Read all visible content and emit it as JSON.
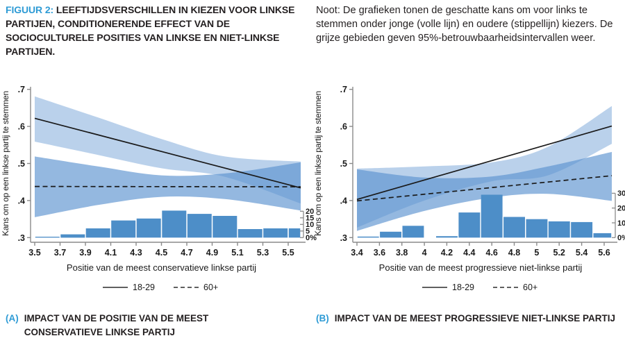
{
  "header": {
    "figure_label": "FIGUUR 2:",
    "title_rest": " LEEFTIJDSVERSCHILLEN IN KIEZEN VOOR LINKSE PARTIJEN, CONDITIONERENDE EFFECT VAN DE SOCIOCULTURELE POSITIES VAN LINKSE EN NIET-LINKSE PARTIJEN.",
    "note": "Noot: De grafieken tonen de geschatte kans om voor links te stemmen onder jonge (volle lijn) en oudere (stippellijn) kiezers. De grijze gebieden geven 95%-betrouwbaarheidsintervallen weer."
  },
  "colors": {
    "accent_blue": "#2E9BD5",
    "bar_blue": "#4D8EC8",
    "band_blue": "#5B92CF",
    "line_black": "#1a1a1a",
    "axis_gray": "#8a8a8a",
    "text_dark": "#231f20",
    "legend_line": "#4a4a4a"
  },
  "captions": [
    {
      "prefix": "(A)",
      "text": "IMPACT VAN DE POSITIE VAN DE MEEST CONSERVATIEVE LINKSE PARTIJ"
    },
    {
      "prefix": "(B)",
      "text": "IMPACT VAN DE MEEST PROGRESSIEVE NIET-LINKSE PARTIJ"
    }
  ],
  "chart_data": [
    {
      "type": "line",
      "panel": "A",
      "ylabel": "Kans om op een linkse partij te stemmen",
      "xlabel": "Positie van de meest conservatieve linkse partij",
      "ylim": [
        0.3,
        0.71
      ],
      "xlim": [
        3.5,
        5.62
      ],
      "grid": false,
      "y_tick_values": [
        0.3,
        0.4,
        0.5,
        0.6,
        0.7
      ],
      "y_tick_labels": [
        ".3",
        ".4",
        ".5",
        ".6",
        ".7"
      ],
      "x_tick_values": [
        3.5,
        3.7,
        3.9,
        4.1,
        4.3,
        4.5,
        4.7,
        4.9,
        5.1,
        5.3,
        5.5
      ],
      "x_tick_labels": [
        "3.5",
        "3.7",
        "3.9",
        "4.1",
        "4.3",
        "4.5",
        "4.7",
        "4.9",
        "5.1",
        "5.3",
        "5.5"
      ],
      "legend": [
        {
          "label": "18-29",
          "style": "solid"
        },
        {
          "label": "60+",
          "style": "dashed"
        }
      ],
      "series": [
        {
          "name": "18-29",
          "style": "solid",
          "points": [
            [
              3.5,
              0.622
            ],
            [
              5.6,
              0.434
            ]
          ]
        },
        {
          "name": "60+",
          "style": "dashed",
          "points": [
            [
              3.5,
              0.438
            ],
            [
              5.6,
              0.437
            ]
          ]
        }
      ],
      "bands": [
        {
          "for": "18-29",
          "level": "95%",
          "x": [
            3.5,
            4.0,
            4.5,
            5.0,
            5.6
          ],
          "upper": [
            0.681,
            0.624,
            0.566,
            0.519,
            0.505
          ],
          "lower": [
            0.559,
            0.523,
            0.487,
            0.464,
            0.392
          ],
          "opacity": 0.42
        },
        {
          "for": "60+",
          "level": "95%",
          "x": [
            3.5,
            4.0,
            4.5,
            5.0,
            5.6
          ],
          "upper": [
            0.519,
            0.492,
            0.468,
            0.473,
            0.503
          ],
          "lower": [
            0.355,
            0.388,
            0.41,
            0.404,
            0.373
          ],
          "opacity": 0.65
        }
      ],
      "histogram": {
        "bin_width": 0.2,
        "bin_starts": [
          3.5,
          3.7,
          3.9,
          4.1,
          4.3,
          4.5,
          4.7,
          4.9,
          5.1,
          5.3,
          5.5
        ],
        "percents": [
          0.7,
          2.5,
          7,
          13,
          14.5,
          20.5,
          18,
          16.5,
          6.5,
          7,
          7
        ],
        "axis_tick_values": [
          0,
          5,
          10,
          15,
          20
        ],
        "axis_tick_labels": [
          "0%",
          "5",
          "10",
          "15",
          "20"
        ]
      }
    },
    {
      "type": "line",
      "panel": "B",
      "ylabel": "Kans om op een linkse partij te stemmen",
      "xlabel": "Positie van de meest progressieve niet-linkse partij",
      "ylim": [
        0.3,
        0.71
      ],
      "xlim": [
        3.4,
        5.67
      ],
      "grid": false,
      "y_tick_values": [
        0.3,
        0.4,
        0.5,
        0.6,
        0.7
      ],
      "y_tick_labels": [
        ".3",
        ".4",
        ".5",
        ".6",
        ".7"
      ],
      "x_tick_values": [
        3.4,
        3.6,
        3.8,
        4.0,
        4.2,
        4.4,
        4.6,
        4.8,
        5.0,
        5.2,
        5.4,
        5.6
      ],
      "x_tick_labels": [
        "3.4",
        "3.6",
        "3.8",
        "4",
        "4.2",
        "4.4",
        "4.6",
        "4.8",
        "5",
        "5.2",
        "5.4",
        "5.6"
      ],
      "legend": [
        {
          "label": "18-29",
          "style": "solid"
        },
        {
          "label": "60+",
          "style": "dashed"
        }
      ],
      "series": [
        {
          "name": "18-29",
          "style": "solid",
          "points": [
            [
              3.4,
              0.403
            ],
            [
              5.67,
              0.601
            ]
          ]
        },
        {
          "name": "60+",
          "style": "dashed",
          "points": [
            [
              3.4,
              0.399
            ],
            [
              5.67,
              0.467
            ]
          ]
        }
      ],
      "bands": [
        {
          "for": "18-29",
          "level": "95%",
          "x": [
            3.4,
            4.0,
            4.6,
            5.1,
            5.67
          ],
          "upper": [
            0.486,
            0.492,
            0.503,
            0.545,
            0.655
          ],
          "lower": [
            0.327,
            0.4,
            0.452,
            0.468,
            0.553
          ],
          "opacity": 0.42
        },
        {
          "for": "60+",
          "level": "95%",
          "x": [
            3.4,
            4.0,
            4.6,
            5.1,
            5.67
          ],
          "upper": [
            0.484,
            0.462,
            0.465,
            0.492,
            0.531
          ],
          "lower": [
            0.318,
            0.372,
            0.408,
            0.418,
            0.399
          ],
          "opacity": 0.65
        }
      ],
      "histogram": {
        "bin_width": 0.2,
        "bin_starts": [
          3.4,
          3.6,
          3.8,
          4.1,
          4.3,
          4.5,
          4.7,
          4.9,
          5.1,
          5.3,
          5.5
        ],
        "percents": [
          0.7,
          4,
          8,
          1,
          17,
          29,
          14,
          12.5,
          11,
          10.5,
          3
        ],
        "axis_tick_values": [
          0,
          10,
          20,
          30
        ],
        "axis_tick_labels": [
          "0%",
          "10",
          "20",
          "30"
        ]
      }
    }
  ]
}
